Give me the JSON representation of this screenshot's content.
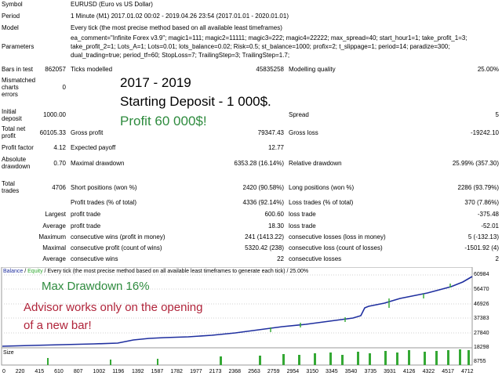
{
  "report": {
    "rows": [
      {
        "label": "Symbol",
        "value": "EURUSD (Euro vs US Dollar)"
      },
      {
        "label": "Period",
        "value": "1 Minute (M1) 2017.01.02 00:02 - 2019.04.26 23:54 (2017.01.01 - 2020.01.01)"
      },
      {
        "label": "Model",
        "value": "Every tick (the most precise method based on all available least timeframes)"
      },
      {
        "label": "Parameters",
        "value": "ea_comment=\"Infinite Forex v3.9\"; magic1=111; magic2=11111; magic3=222; magic4=22222; max_spread=40; start_hour1=1; take_profit_1=3;",
        "value2": "take_profit_2=1; Lots_A=1; Lots=0.01; lots_balance=0.02; Risk=0.5; st_balance=1000; profix=2; t_slippage=1; period=14; paradize=300;",
        "value3": "dual_trading=true; period_tf=60; StopLoss=7; TrailingStep=3; TrailingStep=1.7;"
      }
    ],
    "bars_in_test": {
      "label": "Bars in test",
      "value": "862057",
      "ticks_label": "Ticks modelled",
      "ticks_value": "45835258",
      "quality_label": "Modelling quality",
      "quality_value": "25.00%"
    },
    "mismatched": {
      "label1": "Mismatched",
      "label2": "charts",
      "label3": "errors",
      "value": "0"
    },
    "initial": {
      "label1": "Initial",
      "label2": "deposit",
      "value": "1000.00",
      "spread_label": "Spread",
      "spread_value": "5"
    },
    "net_profit": {
      "label1": "Total net",
      "label2": "profit",
      "value": "60105.33",
      "gross_profit_label": "Gross profit",
      "gross_profit_value": "79347.43",
      "gross_loss_label": "Gross loss",
      "gross_loss_value": "-19242.10"
    },
    "profit_factor": {
      "label": "Profit factor",
      "value": "4.12",
      "payoff_label": "Expected payoff",
      "payoff_value": "12.77"
    },
    "abs_drawdown": {
      "label1": "Absolute",
      "label2": "drawdown",
      "value": "0.70",
      "maximal_label": "Maximal drawdown",
      "maximal_value": "6353.28 (16.14%)",
      "relative_label": "Relative drawdown",
      "relative_value": "25.99% (357.30)"
    },
    "total_trades": {
      "label1": "Total",
      "label2": "trades",
      "value": "4706",
      "short_label": "Short positions (won %)",
      "short_value": "2420 (90.58%)",
      "long_label": "Long positions (won %)",
      "long_value": "2286 (93.79%)"
    },
    "profit_trades": {
      "label": "Profit trades (% of total)",
      "value": "4336 (92.14%)",
      "loss_label": "Loss trades (% of total)",
      "loss_value": "370 (7.86%)"
    },
    "largest": {
      "prefix": "Largest",
      "label": "profit trade",
      "value": "600.60",
      "loss_label": "loss trade",
      "loss_value": "-375.48"
    },
    "average": {
      "prefix": "Average",
      "label": "profit trade",
      "value": "18.30",
      "loss_label": "loss trade",
      "loss_value": "-52.01"
    },
    "maximum": {
      "prefix": "Maximum",
      "label": "consecutive wins (profit in money)",
      "value": "241 (1413.22)",
      "loss_label": "consecutive losses (loss in money)",
      "loss_value": "5 (-132.13)"
    },
    "maximal": {
      "prefix": "Maximal",
      "label": "consecutive profit (count of wins)",
      "value": "5320.42 (238)",
      "loss_label": "consecutive loss (count of losses)",
      "loss_value": "-1501.92 (4)"
    },
    "average2": {
      "prefix": "Average",
      "label": "consecutive wins",
      "value": "22",
      "loss_label": "consecutive losses",
      "loss_value": "2"
    }
  },
  "overlays": {
    "years": "2017 - 2019",
    "deposit": "Starting Deposit - 1 000$.",
    "profit": "Profit 60 000$!",
    "drawdown": "Max Drawdown 16%",
    "advisor1": "Advisor works only on the opening",
    "advisor2": "of a new bar!"
  },
  "graph": {
    "header_balance": "Balance",
    "header_sep": " / ",
    "header_equity": "Equity",
    "header_rest": " / Every tick (the most precise method based on all available least timeframes to generate each tick) / 25.00%",
    "y_labels": [
      "60984",
      "56470",
      "46926",
      "37383",
      "27840",
      "18298",
      "8755"
    ],
    "x_labels": [
      "0",
      "220",
      "415",
      "610",
      "807",
      "1002",
      "1196",
      "1392",
      "1587",
      "1782",
      "1977",
      "2173",
      "2368",
      "2563",
      "2759",
      "2954",
      "3150",
      "3345",
      "3540",
      "3735",
      "3931",
      "4126",
      "4322",
      "4517",
      "4712"
    ],
    "size_label": "Size",
    "balance_color": "#1f2f9f",
    "equity_color": "#2fa82f",
    "vol_color": "#34a834"
  }
}
